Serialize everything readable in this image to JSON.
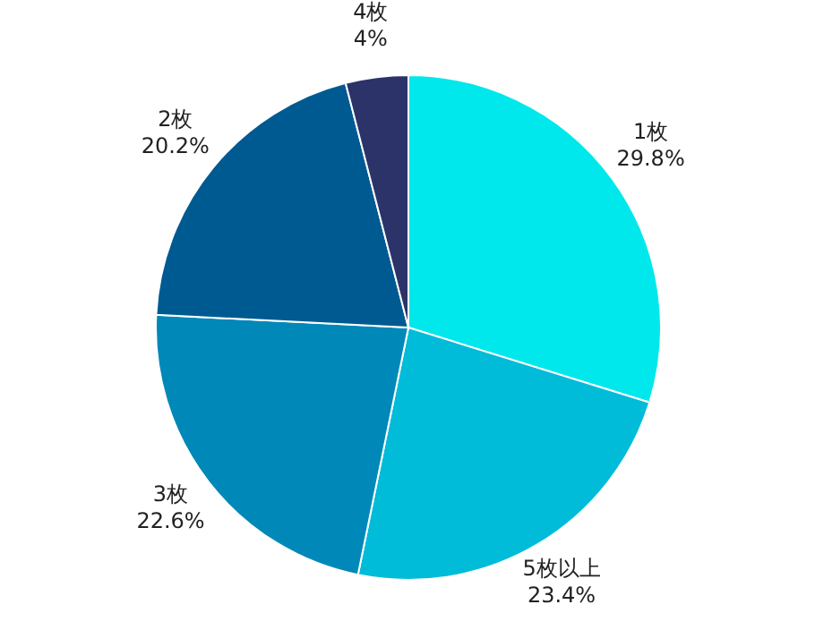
{
  "chart_data": {
    "type": "pie",
    "categories": [
      "1枚",
      "5枚以上",
      "3枚",
      "2枚",
      "4枚"
    ],
    "values": [
      29.8,
      23.4,
      22.6,
      20.2,
      4
    ],
    "value_labels": [
      "29.8%",
      "23.4%",
      "22.6%",
      "20.2%",
      "4%"
    ],
    "colors": [
      "#00e8ec",
      "#00bcd8",
      "#0088b8",
      "#005a92",
      "#2c3368"
    ]
  }
}
